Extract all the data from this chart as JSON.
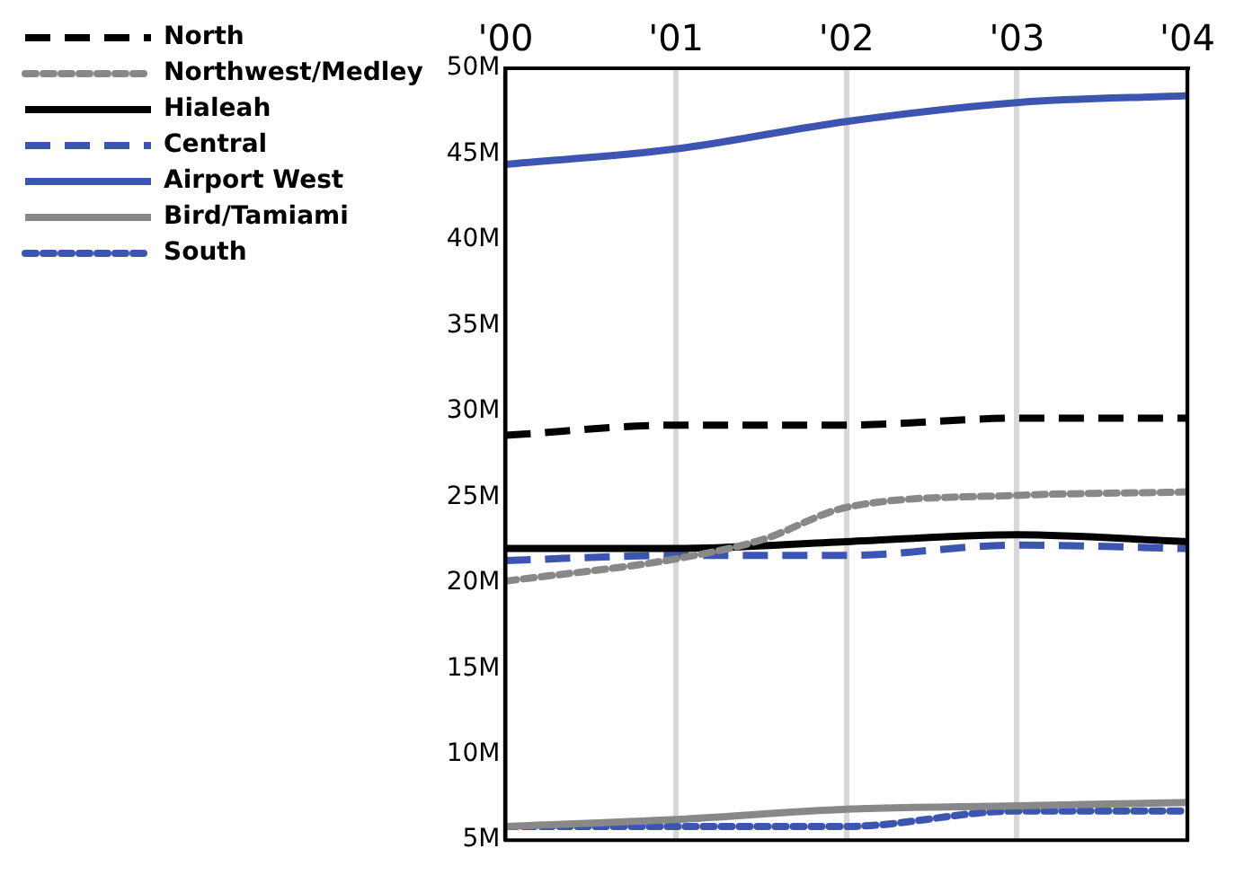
{
  "chart_data": {
    "type": "line",
    "xlim": [
      2000,
      2004
    ],
    "xticks": [
      {
        "value": 2000,
        "label": "'00"
      },
      {
        "value": 2001,
        "label": "'01"
      },
      {
        "value": 2002,
        "label": "'02"
      },
      {
        "value": 2003,
        "label": "'03"
      },
      {
        "value": 2004,
        "label": "'04"
      }
    ],
    "ylim": [
      5,
      50
    ],
    "yticks": [
      {
        "value": 5,
        "label": "5M"
      },
      {
        "value": 10,
        "label": "10M"
      },
      {
        "value": 15,
        "label": "15M"
      },
      {
        "value": 20,
        "label": "20M"
      },
      {
        "value": 25,
        "label": "25M"
      },
      {
        "value": 30,
        "label": "30M"
      },
      {
        "value": 35,
        "label": "35M"
      },
      {
        "value": 40,
        "label": "40M"
      },
      {
        "value": 45,
        "label": "45M"
      },
      {
        "value": 50,
        "label": "50M"
      }
    ],
    "grid": "x",
    "legend": "left",
    "marker": "none",
    "series": [
      {
        "name": "North",
        "color": "#000000",
        "line_style": "dashed",
        "x": [
          2000,
          2001,
          2002,
          2003,
          2004
        ],
        "values": [
          28.6,
          29.2,
          29.2,
          29.6,
          29.6
        ]
      },
      {
        "name": "Northwest/Medley",
        "color": "#888888",
        "line_style": "dotted",
        "x": [
          2000,
          2001,
          2001.5,
          2002,
          2003,
          2004
        ],
        "values": [
          20.1,
          21.4,
          22.5,
          24.4,
          25.1,
          25.3
        ]
      },
      {
        "name": "Hialeah",
        "color": "#000000",
        "line_style": "solid",
        "x": [
          2000,
          2001,
          2002,
          2003,
          2004
        ],
        "values": [
          22.0,
          22.0,
          22.4,
          22.8,
          22.4
        ]
      },
      {
        "name": "Central",
        "color": "#3b55b0",
        "line_style": "dashed",
        "x": [
          2000,
          2001,
          2002,
          2003,
          2004
        ],
        "values": [
          21.3,
          21.6,
          21.6,
          22.2,
          22.0
        ]
      },
      {
        "name": "Airport West",
        "color": "#3b55b0",
        "line_style": "solid",
        "x": [
          2000,
          2001,
          2002,
          2003,
          2004
        ],
        "values": [
          44.4,
          45.3,
          46.9,
          48.0,
          48.4
        ]
      },
      {
        "name": "Bird/Tamiami",
        "color": "#888888",
        "line_style": "solid",
        "x": [
          2000,
          2001,
          2002,
          2003,
          2004
        ],
        "values": [
          5.8,
          6.2,
          6.8,
          7.0,
          7.2
        ]
      },
      {
        "name": "South",
        "color": "#3b55b0",
        "line_style": "dotted",
        "x": [
          2000,
          2001,
          2002,
          2003,
          2004
        ],
        "values": [
          5.8,
          5.8,
          5.8,
          6.7,
          6.7
        ]
      }
    ]
  }
}
